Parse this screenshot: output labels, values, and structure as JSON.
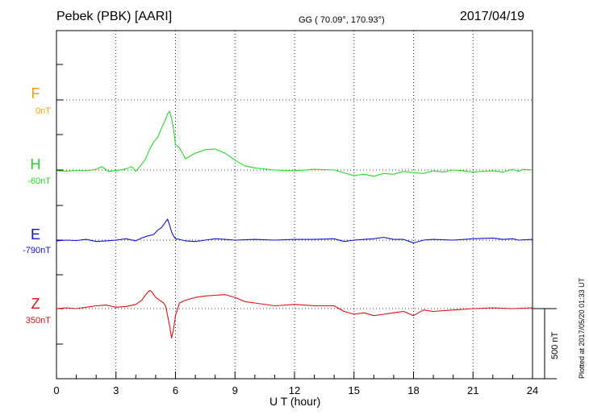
{
  "header": {
    "station": "Pebek (PBK)  [AARI]",
    "coords": "GG ( 70.09°, 170.93°)",
    "date": "2017/04/19"
  },
  "footer": {
    "plotted": "Plotted at 2017/05/20 01:33 UT"
  },
  "chart_data": {
    "type": "line",
    "title": "",
    "xlabel": "U T (hour)",
    "ylabel": "",
    "xlim": [
      0,
      24
    ],
    "xticks": [
      "0",
      "3",
      "6",
      "9",
      "12",
      "15",
      "18",
      "21",
      "24"
    ],
    "grid": true,
    "scale_bar": {
      "label": "500 nT",
      "value_nT": 500
    },
    "colors": {
      "F": "#f5a000",
      "H": "#22dd22",
      "E": "#1010cc",
      "Z": "#dd1010"
    },
    "channels": [
      {
        "name": "F",
        "offset": "0nT",
        "color": "#f5a000",
        "x": [],
        "y": []
      },
      {
        "name": "H",
        "offset": "-60nT",
        "color": "#22dd22",
        "x": [
          0,
          0.5,
          1,
          1.5,
          2,
          2.3,
          2.6,
          3,
          3.5,
          3.8,
          4,
          4.2,
          4.5,
          4.7,
          4.9,
          5.1,
          5.3,
          5.5,
          5.6,
          5.7,
          5.8,
          5.9,
          6.0,
          6.2,
          6.5,
          7,
          7.5,
          8,
          8.5,
          9,
          9.5,
          10,
          11,
          12,
          13,
          14,
          14.5,
          15,
          15.5,
          16,
          16.5,
          17,
          17.5,
          18,
          18.5,
          19,
          19.5,
          20,
          20.5,
          21,
          21.5,
          22,
          22.5,
          23,
          23.3,
          23.5,
          24
        ],
        "y": [
          -5,
          -8,
          -3,
          -6,
          5,
          25,
          -10,
          -5,
          8,
          25,
          -10,
          25,
          80,
          150,
          200,
          235,
          300,
          360,
          400,
          420,
          370,
          300,
          180,
          160,
          80,
          120,
          145,
          150,
          120,
          70,
          30,
          15,
          0,
          -5,
          5,
          0,
          -20,
          -40,
          -30,
          -45,
          -25,
          -30,
          -10,
          -20,
          -25,
          -5,
          -15,
          0,
          -5,
          -15,
          -10,
          -5,
          -15,
          5,
          -10,
          5,
          0
        ]
      },
      {
        "name": "E",
        "offset": "-790nT",
        "color": "#1010cc",
        "x": [
          0,
          0.5,
          1,
          1.5,
          2,
          2.5,
          3,
          3.5,
          4,
          4.3,
          4.6,
          4.9,
          5.1,
          5.3,
          5.5,
          5.6,
          5.7,
          5.8,
          5.9,
          6.0,
          6.2,
          6.5,
          7,
          7.5,
          8,
          8.5,
          9,
          10,
          11,
          12,
          13,
          14,
          14.5,
          15,
          15.5,
          16,
          16.5,
          17,
          17.5,
          18,
          18.5,
          19,
          20,
          21,
          22,
          22.5,
          23,
          23.3,
          24
        ],
        "y": [
          -5,
          0,
          -3,
          5,
          -10,
          -5,
          0,
          10,
          -5,
          15,
          30,
          40,
          70,
          90,
          130,
          150,
          110,
          60,
          30,
          10,
          5,
          -5,
          -10,
          0,
          10,
          5,
          0,
          5,
          0,
          5,
          5,
          10,
          -10,
          0,
          5,
          10,
          20,
          5,
          5,
          -20,
          0,
          5,
          0,
          10,
          15,
          5,
          10,
          0,
          5
        ]
      },
      {
        "name": "Z",
        "offset": "350nT",
        "color": "#dd1010",
        "x": [
          0,
          0.5,
          1,
          1.5,
          2,
          2.5,
          3,
          3.5,
          4,
          4.3,
          4.5,
          4.7,
          4.8,
          5,
          5.2,
          5.4,
          5.5,
          5.6,
          5.7,
          5.8,
          5.9,
          6.0,
          6.2,
          6.5,
          7,
          7.5,
          8,
          8.5,
          9,
          9.5,
          10,
          11,
          12,
          13,
          14,
          14.5,
          15,
          15.5,
          16,
          16.5,
          17,
          17.5,
          18,
          18.5,
          19,
          20,
          21,
          22,
          23,
          24
        ],
        "y": [
          0,
          5,
          0,
          10,
          20,
          25,
          10,
          15,
          30,
          60,
          100,
          130,
          120,
          80,
          60,
          40,
          20,
          -50,
          -120,
          -210,
          -150,
          -50,
          40,
          60,
          80,
          90,
          95,
          100,
          80,
          50,
          40,
          20,
          30,
          20,
          20,
          -20,
          -40,
          -30,
          -50,
          -40,
          -30,
          -20,
          -50,
          -10,
          -20,
          -10,
          0,
          5,
          0,
          5
        ]
      }
    ]
  }
}
